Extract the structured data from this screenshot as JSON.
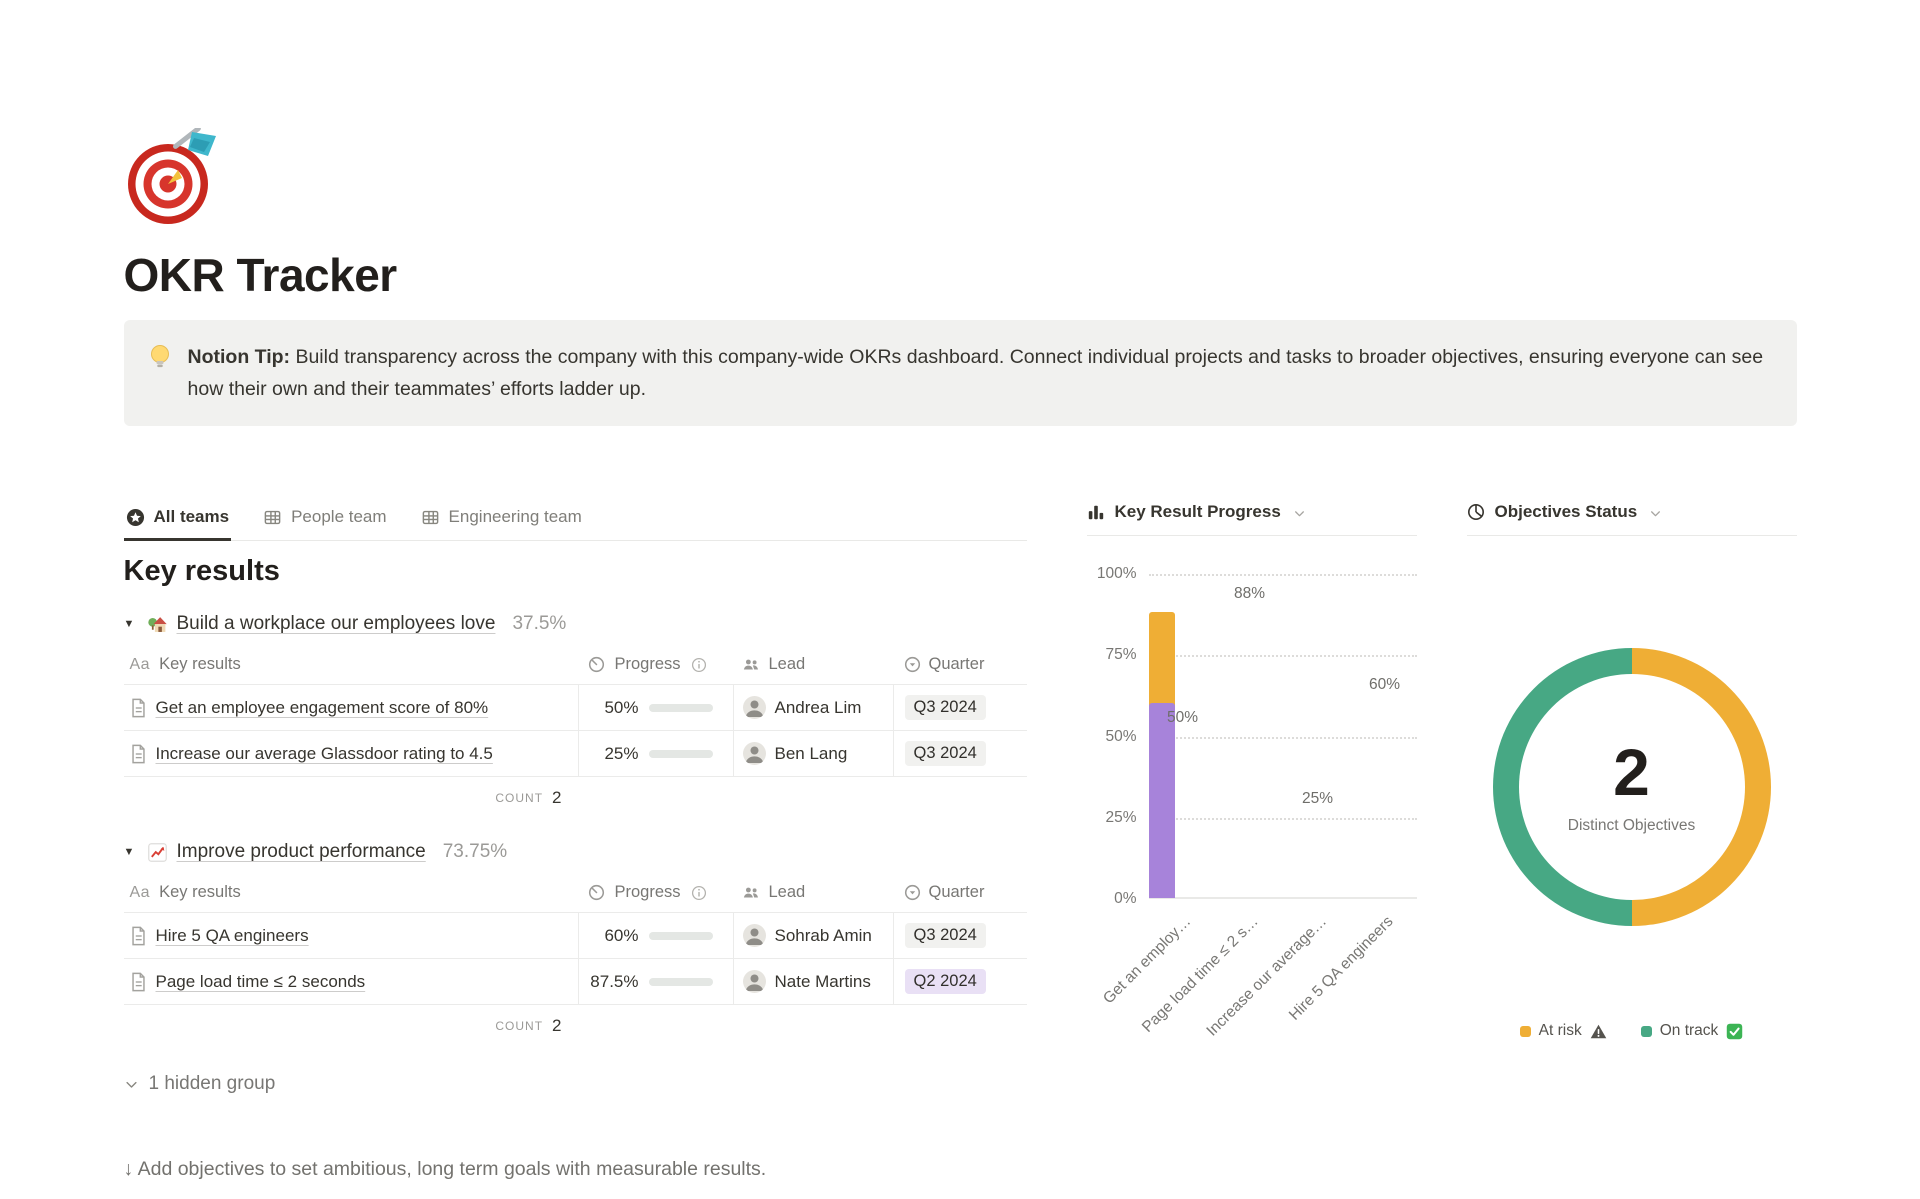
{
  "page": {
    "title": "OKR Tracker",
    "callout": {
      "lead": "Notion Tip:",
      "body": " Build transparency across the company with this company-wide OKRs dashboard. Connect individual projects and tasks to broader objectives, ensuring everyone can see how their own and their teammates’ efforts ladder up."
    },
    "footer_hint": "↓ Add objectives to set ambitious, long term goals with measurable results."
  },
  "tabs": [
    {
      "label": "All teams",
      "active": true
    },
    {
      "label": "People team",
      "active": false
    },
    {
      "label": "Engineering team",
      "active": false
    }
  ],
  "key_results": {
    "heading": "Key results",
    "header": {
      "name_prefix": "Aa",
      "name": "Key results",
      "progress": "Progress",
      "lead": "Lead",
      "quarter": "Quarter"
    },
    "groups": [
      {
        "title": "Build a workplace our employees love",
        "percent": "37.5%",
        "count_label": "COUNT",
        "count": "2",
        "rows": [
          {
            "name": "Get an employee engagement score of 80%",
            "progress_label": "50%",
            "progress_value": 50,
            "lead": "Andrea Lim",
            "quarter": "Q3 2024",
            "quarter_style": "gray"
          },
          {
            "name": "Increase our average Glassdoor rating to 4.5",
            "progress_label": "25%",
            "progress_value": 25,
            "lead": "Ben Lang",
            "quarter": "Q3 2024",
            "quarter_style": "gray"
          }
        ]
      },
      {
        "title": "Improve product performance",
        "percent": "73.75%",
        "count_label": "COUNT",
        "count": "2",
        "rows": [
          {
            "name": "Hire 5 QA engineers",
            "progress_label": "60%",
            "progress_value": 60,
            "lead": "Sohrab Amin",
            "quarter": "Q3 2024",
            "quarter_style": "gray"
          },
          {
            "name": "Page load time ≤ 2 seconds",
            "progress_label": "87.5%",
            "progress_value": 87.5,
            "lead": "Nate Martins",
            "quarter": "Q2 2024",
            "quarter_style": "purple"
          }
        ]
      }
    ],
    "hidden_group": "1 hidden group"
  },
  "chart_data": [
    {
      "type": "bar",
      "title": "Key Result Progress",
      "categories": [
        "Get an employ…",
        "Page load time ≤ 2 s…",
        "Increase our average…",
        "Hire 5 QA engineers"
      ],
      "values": [
        50,
        88,
        25,
        60
      ],
      "data_labels": [
        "50%",
        "88%",
        "25%",
        "60%"
      ],
      "bar_colors": [
        "#2e9bf0",
        "#efae35",
        "#58a47e",
        "#a783da"
      ],
      "y_ticks": [
        "100%",
        "75%",
        "50%",
        "25%",
        "0%"
      ],
      "ylim": [
        0,
        100
      ],
      "grid": "dotted-horizontal",
      "legend": "none"
    },
    {
      "type": "pie",
      "title": "Objectives Status",
      "center_value": "2",
      "center_label": "Distinct Objectives",
      "slices": [
        {
          "label": "At risk",
          "value": 50,
          "color": "#efae35"
        },
        {
          "label": "On track",
          "value": 50,
          "color": "#47a884"
        }
      ],
      "legend_position": "bottom"
    }
  ],
  "colors": {
    "progress_fill": "#6f9a87",
    "progress_track": "#e4e7e4",
    "badge_gray_bg": "#f1f1ef",
    "badge_purple_bg": "#e9e0f5",
    "accent_text": "#37352f"
  }
}
